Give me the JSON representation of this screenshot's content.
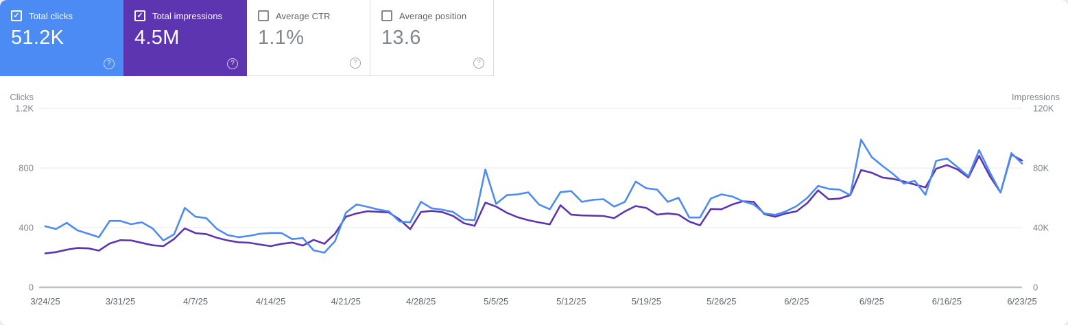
{
  "cards": [
    {
      "label": "Total clicks",
      "value": "51.2K",
      "checked": true,
      "selected": true,
      "bg": "#4c8bf4",
      "fg": "#ffffff"
    },
    {
      "label": "Total impressions",
      "value": "4.5M",
      "checked": true,
      "selected": true,
      "bg": "#5e35b1",
      "fg": "#ffffff"
    },
    {
      "label": "Average CTR",
      "value": "1.1%",
      "checked": false,
      "selected": false,
      "bg": "#ffffff",
      "fg": "#80868b"
    },
    {
      "label": "Average position",
      "value": "13.6",
      "checked": false,
      "selected": false,
      "bg": "#ffffff",
      "fg": "#80868b"
    }
  ],
  "icons": {
    "help": "?",
    "check": "✓"
  },
  "chart_data": {
    "type": "line",
    "grid": true,
    "x_tick_labels": [
      "3/24/25",
      "3/31/25",
      "4/7/25",
      "4/14/25",
      "4/21/25",
      "4/28/25",
      "5/5/25",
      "5/12/25",
      "5/19/25",
      "5/26/25",
      "6/2/25",
      "6/9/25",
      "6/16/25",
      "6/23/25"
    ],
    "left_axis": {
      "title": "Clicks",
      "ticks": [
        "0",
        "400",
        "800",
        "1.2K"
      ],
      "range": [
        0,
        1200
      ]
    },
    "right_axis": {
      "title": "Impressions",
      "ticks": [
        "0",
        "40K",
        "80K",
        "120K"
      ],
      "range": [
        0,
        120000
      ]
    },
    "series": [
      {
        "name": "Total clicks",
        "axis": "left",
        "color": "#4c8bf4",
        "values": [
          409,
          391,
          432,
          382,
          359,
          336,
          445,
          445,
          423,
          436,
          395,
          314,
          355,
          532,
          473,
          464,
          391,
          350,
          336,
          345,
          359,
          364,
          364,
          323,
          330,
          248,
          232,
          310,
          500,
          556,
          540,
          522,
          510,
          441,
          436,
          573,
          530,
          520,
          505,
          455,
          450,
          790,
          559,
          618,
          623,
          637,
          555,
          523,
          638,
          645,
          573,
          586,
          591,
          541,
          573,
          709,
          664,
          655,
          573,
          600,
          468,
          468,
          595,
          623,
          609,
          577,
          555,
          495,
          486,
          509,
          545,
          600,
          680,
          660,
          655,
          618,
          990,
          873,
          814,
          759,
          695,
          714,
          620,
          848,
          864,
          805,
          745,
          920,
          770,
          635,
          900,
          830
        ]
      },
      {
        "name": "Total impressions",
        "axis": "right",
        "color": "#5e35b1",
        "values": [
          22700,
          23600,
          25200,
          26400,
          26100,
          24600,
          29400,
          31600,
          31400,
          29800,
          28200,
          27600,
          32400,
          39500,
          36300,
          35700,
          33200,
          31400,
          30200,
          29900,
          28700,
          27600,
          29100,
          30000,
          28000,
          31800,
          29200,
          36000,
          47300,
          49500,
          51000,
          50600,
          50200,
          45500,
          39000,
          50500,
          51200,
          50400,
          47800,
          43000,
          41200,
          56800,
          54100,
          50000,
          47000,
          45000,
          43500,
          42200,
          55000,
          48700,
          48200,
          48000,
          47800,
          46400,
          50900,
          54500,
          53200,
          48700,
          49500,
          48700,
          44100,
          41500,
          52500,
          52300,
          55500,
          57700,
          57300,
          49000,
          47300,
          49500,
          51000,
          56500,
          65000,
          59000,
          59500,
          61800,
          78600,
          76800,
          73600,
          72700,
          70900,
          68900,
          67000,
          79500,
          82000,
          79000,
          73600,
          88200,
          74500,
          63600,
          89000,
          85000
        ]
      }
    ]
  }
}
